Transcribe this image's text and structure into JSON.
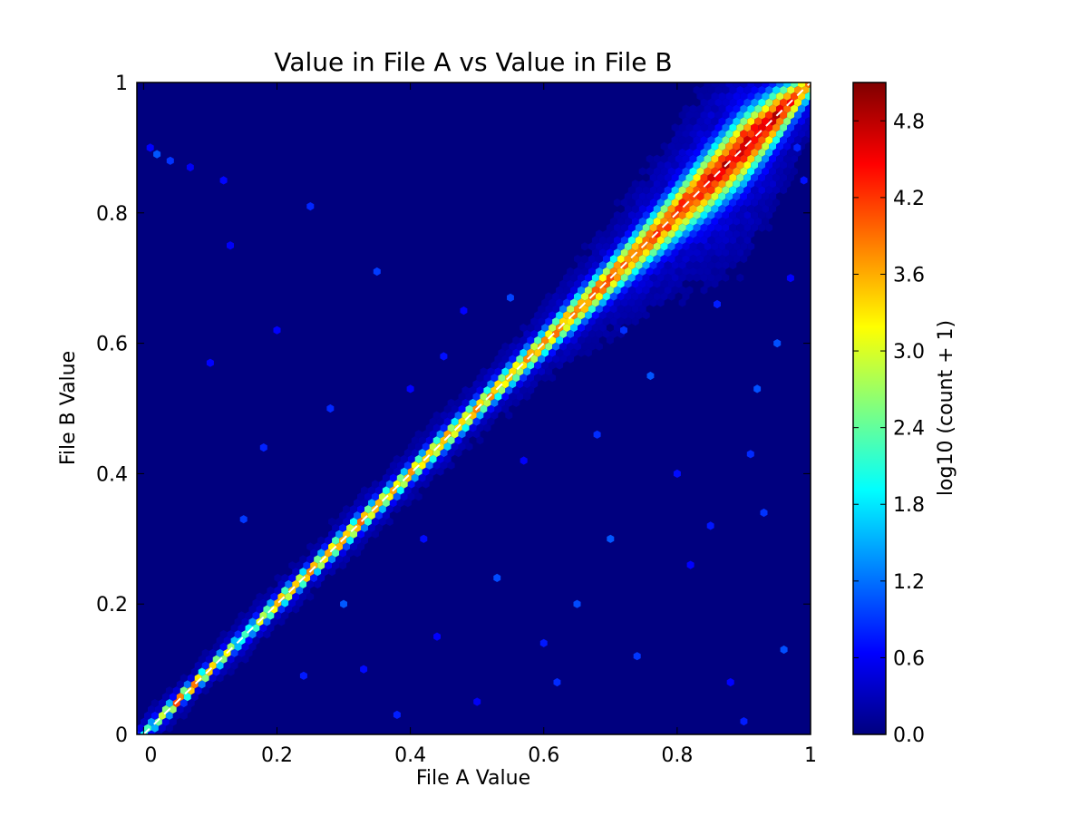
{
  "chart_data": {
    "type": "heatmap",
    "subtype": "hexbin",
    "title": "Value in File A vs Value in File B",
    "xlabel": "File A Value",
    "ylabel": "File B Value",
    "xlim": [
      -0.01,
      1.0
    ],
    "ylim": [
      0,
      1
    ],
    "x_ticks": [
      0,
      0.2,
      0.4,
      0.6,
      0.8,
      1
    ],
    "x_tick_labels": [
      "0",
      "0.2",
      "0.4",
      "0.6",
      "0.8",
      "1"
    ],
    "y_ticks": [
      0,
      0.2,
      0.4,
      0.6,
      0.8,
      1
    ],
    "y_tick_labels": [
      "0",
      "0.2",
      "0.4",
      "0.6",
      "0.8",
      "1"
    ],
    "grid": false,
    "reference_line": {
      "style": "dashed",
      "color": "#ffffff",
      "from": [
        0,
        0
      ],
      "to": [
        1,
        1
      ]
    },
    "colorbar": {
      "label": "log10 (count + 1)",
      "colormap": "jet",
      "range": [
        0,
        5.1
      ],
      "ticks": [
        0.0,
        0.6,
        1.2,
        1.8,
        2.4,
        3.0,
        3.6,
        4.2,
        4.8
      ],
      "tick_labels": [
        "0.0",
        "0.6",
        "1.2",
        "1.8",
        "2.4",
        "3.0",
        "3.6",
        "4.2",
        "4.8"
      ]
    },
    "background_color": "#00007f",
    "diagonal_profile": {
      "x": [
        0.0,
        0.05,
        0.1,
        0.15,
        0.2,
        0.25,
        0.3,
        0.35,
        0.4,
        0.45,
        0.5,
        0.55,
        0.6,
        0.65,
        0.7,
        0.75,
        0.8,
        0.85,
        0.9,
        0.95,
        0.99
      ],
      "value": [
        2.0,
        4.0,
        3.9,
        2.0,
        3.8,
        3.7,
        3.8,
        3.6,
        3.5,
        3.7,
        3.6,
        3.5,
        3.7,
        3.8,
        3.9,
        3.9,
        4.2,
        4.5,
        4.7,
        4.6,
        3.8
      ],
      "spread": [
        0.005,
        0.005,
        0.005,
        0.006,
        0.006,
        0.006,
        0.007,
        0.007,
        0.007,
        0.008,
        0.008,
        0.009,
        0.01,
        0.012,
        0.014,
        0.017,
        0.02,
        0.024,
        0.026,
        0.02,
        0.012
      ]
    },
    "scattered_points": [
      [
        0.01,
        0.9
      ],
      [
        0.02,
        0.89
      ],
      [
        0.04,
        0.88
      ],
      [
        0.07,
        0.87
      ],
      [
        0.12,
        0.85
      ],
      [
        0.13,
        0.75
      ],
      [
        0.1,
        0.57
      ],
      [
        0.18,
        0.44
      ],
      [
        0.2,
        0.62
      ],
      [
        0.25,
        0.81
      ],
      [
        0.3,
        0.2
      ],
      [
        0.38,
        0.03
      ],
      [
        0.42,
        0.3
      ],
      [
        0.45,
        0.58
      ],
      [
        0.48,
        0.65
      ],
      [
        0.55,
        0.67
      ],
      [
        0.6,
        0.14
      ],
      [
        0.65,
        0.2
      ],
      [
        0.7,
        0.3
      ],
      [
        0.72,
        0.62
      ],
      [
        0.76,
        0.55
      ],
      [
        0.8,
        0.4
      ],
      [
        0.82,
        0.26
      ],
      [
        0.85,
        0.32
      ],
      [
        0.88,
        0.08
      ],
      [
        0.9,
        0.02
      ],
      [
        0.92,
        0.53
      ],
      [
        0.95,
        0.6
      ],
      [
        0.96,
        0.13
      ],
      [
        0.97,
        0.7
      ],
      [
        0.33,
        0.1
      ],
      [
        0.4,
        0.53
      ],
      [
        0.5,
        0.05
      ],
      [
        0.57,
        0.42
      ],
      [
        0.62,
        0.08
      ],
      [
        0.68,
        0.46
      ],
      [
        0.86,
        0.66
      ],
      [
        0.91,
        0.43
      ],
      [
        0.93,
        0.34
      ],
      [
        0.99,
        0.85
      ],
      [
        0.98,
        0.9
      ],
      [
        0.15,
        0.33
      ],
      [
        0.28,
        0.5
      ],
      [
        0.35,
        0.71
      ],
      [
        0.24,
        0.09
      ],
      [
        0.44,
        0.15
      ],
      [
        0.53,
        0.24
      ],
      [
        0.74,
        0.12
      ]
    ]
  }
}
